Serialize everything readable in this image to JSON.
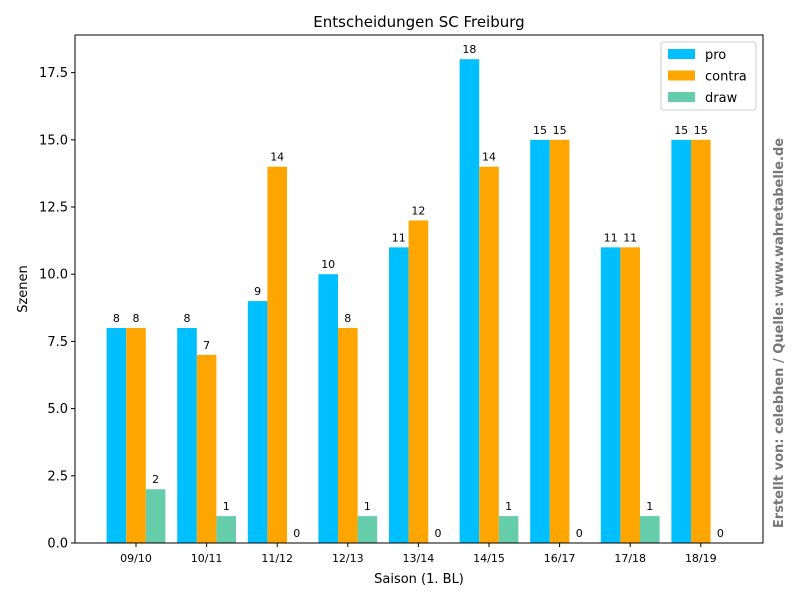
{
  "chart_data": {
    "type": "bar",
    "title": "Entscheidungen SC Freiburg",
    "xlabel": "Saison (1. BL)",
    "ylabel": "Szenen",
    "ylim": [
      0,
      18.9
    ],
    "yticks": [
      "0.0",
      "2.5",
      "5.0",
      "7.5",
      "10.0",
      "12.5",
      "15.0",
      "17.5"
    ],
    "ytick_values": [
      0,
      2.5,
      5,
      7.5,
      10,
      12.5,
      15,
      17.5
    ],
    "categories": [
      "09/10",
      "10/11",
      "11/12",
      "12/13",
      "13/14",
      "14/15",
      "16/17",
      "17/18",
      "18/19"
    ],
    "series": [
      {
        "name": "pro",
        "color": "#00bfff",
        "values": [
          8,
          8,
          9,
          10,
          11,
          18,
          15,
          11,
          15
        ]
      },
      {
        "name": "contra",
        "color": "#ffa500",
        "values": [
          8,
          7,
          14,
          8,
          12,
          14,
          15,
          11,
          15
        ]
      },
      {
        "name": "draw",
        "color": "#66cdaa",
        "values": [
          2,
          1,
          0,
          1,
          0,
          1,
          0,
          1,
          0
        ]
      }
    ],
    "legend_position": "top-right",
    "watermark": "Erstellt von: celebhen / Quelle: www.wahretabelle.de"
  }
}
